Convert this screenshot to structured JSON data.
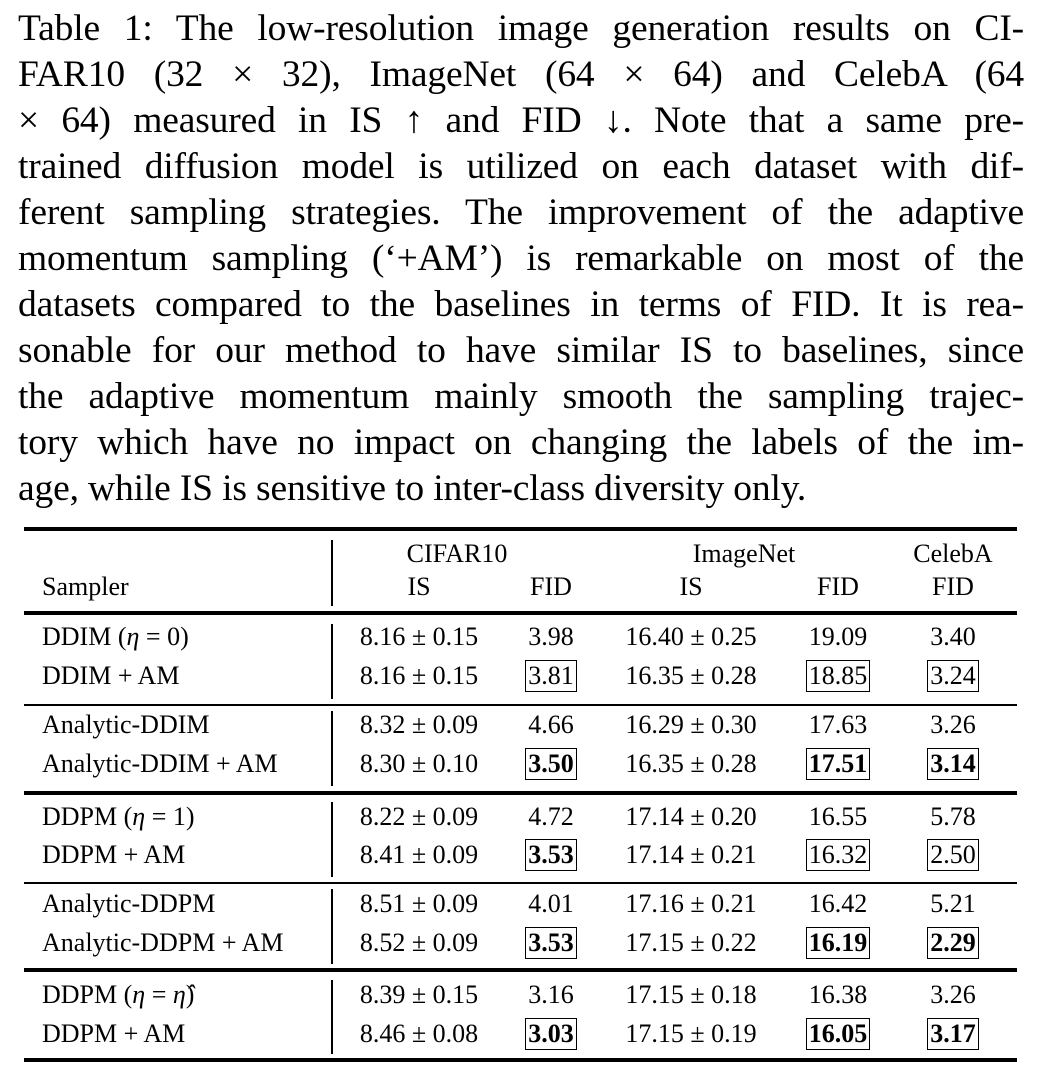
{
  "caption": {
    "lines": [
      "Table 1: The low-resolution image generation results on CI-",
      "FAR10 (32 × 32), ImageNet (64 × 64) and CelebA (64",
      "× 64) measured in IS ↑ and FID ↓. Note that a same pre-",
      "trained diffusion model is utilized on each dataset with dif-",
      "ferent sampling strategies. The improvement of the adaptive",
      "momentum sampling (‘+AM’) is remarkable on most of the",
      "datasets compared to the baselines in terms of FID. It is rea-",
      "sonable for our method to have similar IS to baselines, since",
      "the adaptive momentum mainly smooth the sampling trajec-",
      "tory which have no impact on changing the labels of the im-",
      "age, while IS is sensitive to inter-class diversity only."
    ]
  },
  "table": {
    "group_headers": {
      "cifar": "CIFAR10",
      "imagenet": "ImageNet",
      "celeba": "CelebA"
    },
    "col_headers": {
      "sampler": "Sampler",
      "cifar_is": "IS",
      "cifar_fid": "FID",
      "imagenet_is": "IS",
      "imagenet_fid": "FID",
      "celeba_fid": "FID"
    },
    "rows": [
      {
        "sampler": "DDIM (η = 0)",
        "cifar_is": "8.16 ± 0.15",
        "cifar_fid": "3.98",
        "imagenet_is": "16.40 ± 0.25",
        "imagenet_fid": "19.09",
        "celeba_fid": "3.40"
      },
      {
        "sampler": "DDIM + AM",
        "cifar_is": "8.16 ± 0.15",
        "cifar_fid": "3.81",
        "imagenet_is": "16.35 ± 0.28",
        "imagenet_fid": "18.85",
        "celeba_fid": "3.24"
      },
      {
        "sampler": "Analytic-DDIM",
        "cifar_is": "8.32 ± 0.09",
        "cifar_fid": "4.66",
        "imagenet_is": "16.29 ± 0.30",
        "imagenet_fid": "17.63",
        "celeba_fid": "3.26"
      },
      {
        "sampler": "Analytic-DDIM + AM",
        "cifar_is": "8.30 ± 0.10",
        "cifar_fid": "3.50",
        "imagenet_is": "16.35 ± 0.28",
        "imagenet_fid": "17.51",
        "celeba_fid": "3.14"
      },
      {
        "sampler": "DDPM (η = 1)",
        "cifar_is": "8.22 ± 0.09",
        "cifar_fid": "4.72",
        "imagenet_is": "17.14 ± 0.20",
        "imagenet_fid": "16.55",
        "celeba_fid": "5.78"
      },
      {
        "sampler": "DDPM + AM",
        "cifar_is": "8.41 ± 0.09",
        "cifar_fid": "3.53",
        "imagenet_is": "17.14 ± 0.21",
        "imagenet_fid": "16.32",
        "celeba_fid": "2.50"
      },
      {
        "sampler": "Analytic-DDPM",
        "cifar_is": "8.51 ± 0.09",
        "cifar_fid": "4.01",
        "imagenet_is": "17.16 ± 0.21",
        "imagenet_fid": "16.42",
        "celeba_fid": "5.21"
      },
      {
        "sampler": "Analytic-DDPM + AM",
        "cifar_is": "8.52 ± 0.09",
        "cifar_fid": "3.53",
        "imagenet_is": "17.15 ± 0.22",
        "imagenet_fid": "16.19",
        "celeba_fid": "2.29"
      },
      {
        "sampler": "DDPM (η = η̂)",
        "cifar_is": "8.39 ± 0.15",
        "cifar_fid": "3.16",
        "imagenet_is": "17.15 ± 0.18",
        "imagenet_fid": "16.38",
        "celeba_fid": "3.26"
      },
      {
        "sampler": "DDPM + AM",
        "cifar_is": "8.46 ± 0.08",
        "cifar_fid": "3.03",
        "imagenet_is": "17.15 ± 0.19",
        "imagenet_fid": "16.05",
        "celeba_fid": "3.17"
      }
    ]
  }
}
